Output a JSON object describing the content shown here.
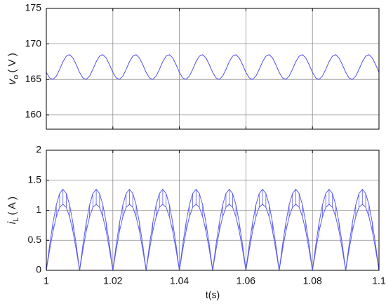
{
  "chart_data": [
    {
      "type": "line",
      "ylabel": {
        "symbol": "v",
        "subscript": "o",
        "unit": "( V )"
      },
      "x": [
        1,
        1.001,
        1.002,
        1.003,
        1.004,
        1.005,
        1.006,
        1.007,
        1.008,
        1.009,
        1.01,
        1.011,
        1.012,
        1.013,
        1.014,
        1.015,
        1.016,
        1.017,
        1.018,
        1.019,
        1.02,
        1.021,
        1.022,
        1.023,
        1.024,
        1.025,
        1.026,
        1.027,
        1.028,
        1.029,
        1.03,
        1.031,
        1.032,
        1.033,
        1.034,
        1.035,
        1.036,
        1.037,
        1.038,
        1.039,
        1.04,
        1.041,
        1.042,
        1.043,
        1.044,
        1.045,
        1.046,
        1.047,
        1.048,
        1.049,
        1.05,
        1.051,
        1.052,
        1.053,
        1.054,
        1.055,
        1.056,
        1.057,
        1.058,
        1.059,
        1.06,
        1.061,
        1.062,
        1.063,
        1.064,
        1.065,
        1.066,
        1.067,
        1.068,
        1.069,
        1.07,
        1.071,
        1.072,
        1.073,
        1.074,
        1.075,
        1.076,
        1.077,
        1.078,
        1.079,
        1.08,
        1.081,
        1.082,
        1.083,
        1.084,
        1.085,
        1.086,
        1.087,
        1.088,
        1.089,
        1.09,
        1.091,
        1.092,
        1.093,
        1.094,
        1.095,
        1.096,
        1.097,
        1.098,
        1.099,
        1.1
      ],
      "series": [
        {
          "color": "#5050f0",
          "values": [
            166,
            165.22,
            165.01,
            165.47,
            166.42,
            167.5,
            168.28,
            168.49,
            168.03,
            167.08,
            166,
            165.22,
            165.01,
            165.47,
            166.42,
            167.5,
            168.28,
            168.49,
            168.03,
            167.08,
            166,
            165.22,
            165.01,
            165.47,
            166.42,
            167.5,
            168.28,
            168.49,
            168.03,
            167.08,
            166,
            165.22,
            165.01,
            165.47,
            166.42,
            167.5,
            168.28,
            168.49,
            168.03,
            167.08,
            166,
            165.22,
            165.01,
            165.47,
            166.42,
            167.5,
            168.28,
            168.49,
            168.03,
            167.08,
            166,
            165.22,
            165.01,
            165.47,
            166.42,
            167.5,
            168.28,
            168.49,
            168.03,
            167.08,
            166,
            165.22,
            165.01,
            165.47,
            166.42,
            167.5,
            168.28,
            168.49,
            168.03,
            167.08,
            166,
            165.22,
            165.01,
            165.47,
            166.42,
            167.5,
            168.28,
            168.49,
            168.03,
            167.08,
            166,
            165.22,
            165.01,
            165.47,
            166.42,
            167.5,
            168.28,
            168.49,
            168.03,
            167.08,
            166,
            165.22,
            165.01,
            165.47,
            166.42,
            167.5,
            168.28,
            168.49,
            168.03,
            167.08,
            166
          ]
        }
      ],
      "xlim": [
        1,
        1.1
      ],
      "xticks": [
        1,
        1.02,
        1.04,
        1.06,
        1.08,
        1.1
      ],
      "ylim": [
        158,
        175
      ],
      "yticks": [
        160,
        165,
        170,
        175
      ],
      "grid": true
    },
    {
      "type": "line",
      "ylabel": {
        "symbol": "i",
        "subscript": "L",
        "unit": "( A )"
      },
      "xlabel": "t(s)",
      "fill_between": true,
      "x": [
        1,
        1.001,
        1.002,
        1.003,
        1.004,
        1.005,
        1.006,
        1.007,
        1.008,
        1.009,
        1.01,
        1.011,
        1.012,
        1.013,
        1.014,
        1.015,
        1.016,
        1.017,
        1.018,
        1.019,
        1.02,
        1.021,
        1.022,
        1.023,
        1.024,
        1.025,
        1.026,
        1.027,
        1.028,
        1.029,
        1.03,
        1.031,
        1.032,
        1.033,
        1.034,
        1.035,
        1.036,
        1.037,
        1.038,
        1.039,
        1.04,
        1.041,
        1.042,
        1.043,
        1.044,
        1.045,
        1.046,
        1.047,
        1.048,
        1.049,
        1.05,
        1.051,
        1.052,
        1.053,
        1.054,
        1.055,
        1.056,
        1.057,
        1.058,
        1.059,
        1.06,
        1.061,
        1.062,
        1.063,
        1.064,
        1.065,
        1.066,
        1.067,
        1.068,
        1.069,
        1.07,
        1.071,
        1.072,
        1.073,
        1.074,
        1.075,
        1.076,
        1.077,
        1.078,
        1.079,
        1.08,
        1.081,
        1.082,
        1.083,
        1.084,
        1.085,
        1.086,
        1.087,
        1.088,
        1.089,
        1.09,
        1.091,
        1.092,
        1.093,
        1.094,
        1.095,
        1.096,
        1.097,
        1.098,
        1.099,
        1.1
      ],
      "series": [
        {
          "color": "#5a5af0",
          "values": [
            0,
            0.42,
            0.79,
            1.09,
            1.28,
            1.35,
            1.28,
            1.09,
            0.79,
            0.42,
            0,
            0.42,
            0.79,
            1.09,
            1.28,
            1.35,
            1.28,
            1.09,
            0.79,
            0.42,
            0,
            0.42,
            0.79,
            1.09,
            1.28,
            1.35,
            1.28,
            1.09,
            0.79,
            0.42,
            0,
            0.42,
            0.79,
            1.09,
            1.28,
            1.35,
            1.28,
            1.09,
            0.79,
            0.42,
            0,
            0.42,
            0.79,
            1.09,
            1.28,
            1.35,
            1.28,
            1.09,
            0.79,
            0.42,
            0,
            0.42,
            0.79,
            1.09,
            1.28,
            1.35,
            1.28,
            1.09,
            0.79,
            0.42,
            0,
            0.42,
            0.79,
            1.09,
            1.28,
            1.35,
            1.28,
            1.09,
            0.79,
            0.42,
            0,
            0.42,
            0.79,
            1.09,
            1.28,
            1.35,
            1.28,
            1.09,
            0.79,
            0.42,
            0,
            0.42,
            0.79,
            1.09,
            1.28,
            1.35,
            1.28,
            1.09,
            0.79,
            0.42,
            0,
            0.42,
            0.79,
            1.09,
            1.28,
            1.35,
            1.28,
            1.09,
            0.79,
            0.42,
            0
          ]
        },
        {
          "color": "#5a5af0",
          "values": [
            0,
            0.34,
            0.65,
            0.89,
            1.05,
            1.1,
            1.05,
            0.89,
            0.65,
            0.34,
            0,
            0.34,
            0.65,
            0.89,
            1.05,
            1.1,
            1.05,
            0.89,
            0.65,
            0.34,
            0,
            0.34,
            0.65,
            0.89,
            1.05,
            1.1,
            1.05,
            0.89,
            0.65,
            0.34,
            0,
            0.34,
            0.65,
            0.89,
            1.05,
            1.1,
            1.05,
            0.89,
            0.65,
            0.34,
            0,
            0.34,
            0.65,
            0.89,
            1.05,
            1.1,
            1.05,
            0.89,
            0.65,
            0.34,
            0,
            0.34,
            0.65,
            0.89,
            1.05,
            1.1,
            1.05,
            0.89,
            0.65,
            0.34,
            0,
            0.34,
            0.65,
            0.89,
            1.05,
            1.1,
            1.05,
            0.89,
            0.65,
            0.34,
            0,
            0.34,
            0.65,
            0.89,
            1.05,
            1.1,
            1.05,
            0.89,
            0.65,
            0.34,
            0,
            0.34,
            0.65,
            0.89,
            1.05,
            1.1,
            1.05,
            0.89,
            0.65,
            0.34,
            0,
            0.34,
            0.65,
            0.89,
            1.05,
            1.1,
            1.05,
            0.89,
            0.65,
            0.34,
            0
          ]
        }
      ],
      "xlim": [
        1,
        1.1
      ],
      "xticks": [
        1,
        1.02,
        1.04,
        1.06,
        1.08,
        1.1
      ],
      "ylim": [
        0,
        2
      ],
      "yticks": [
        0,
        0.5,
        1,
        1.5,
        2
      ],
      "grid": true
    }
  ]
}
